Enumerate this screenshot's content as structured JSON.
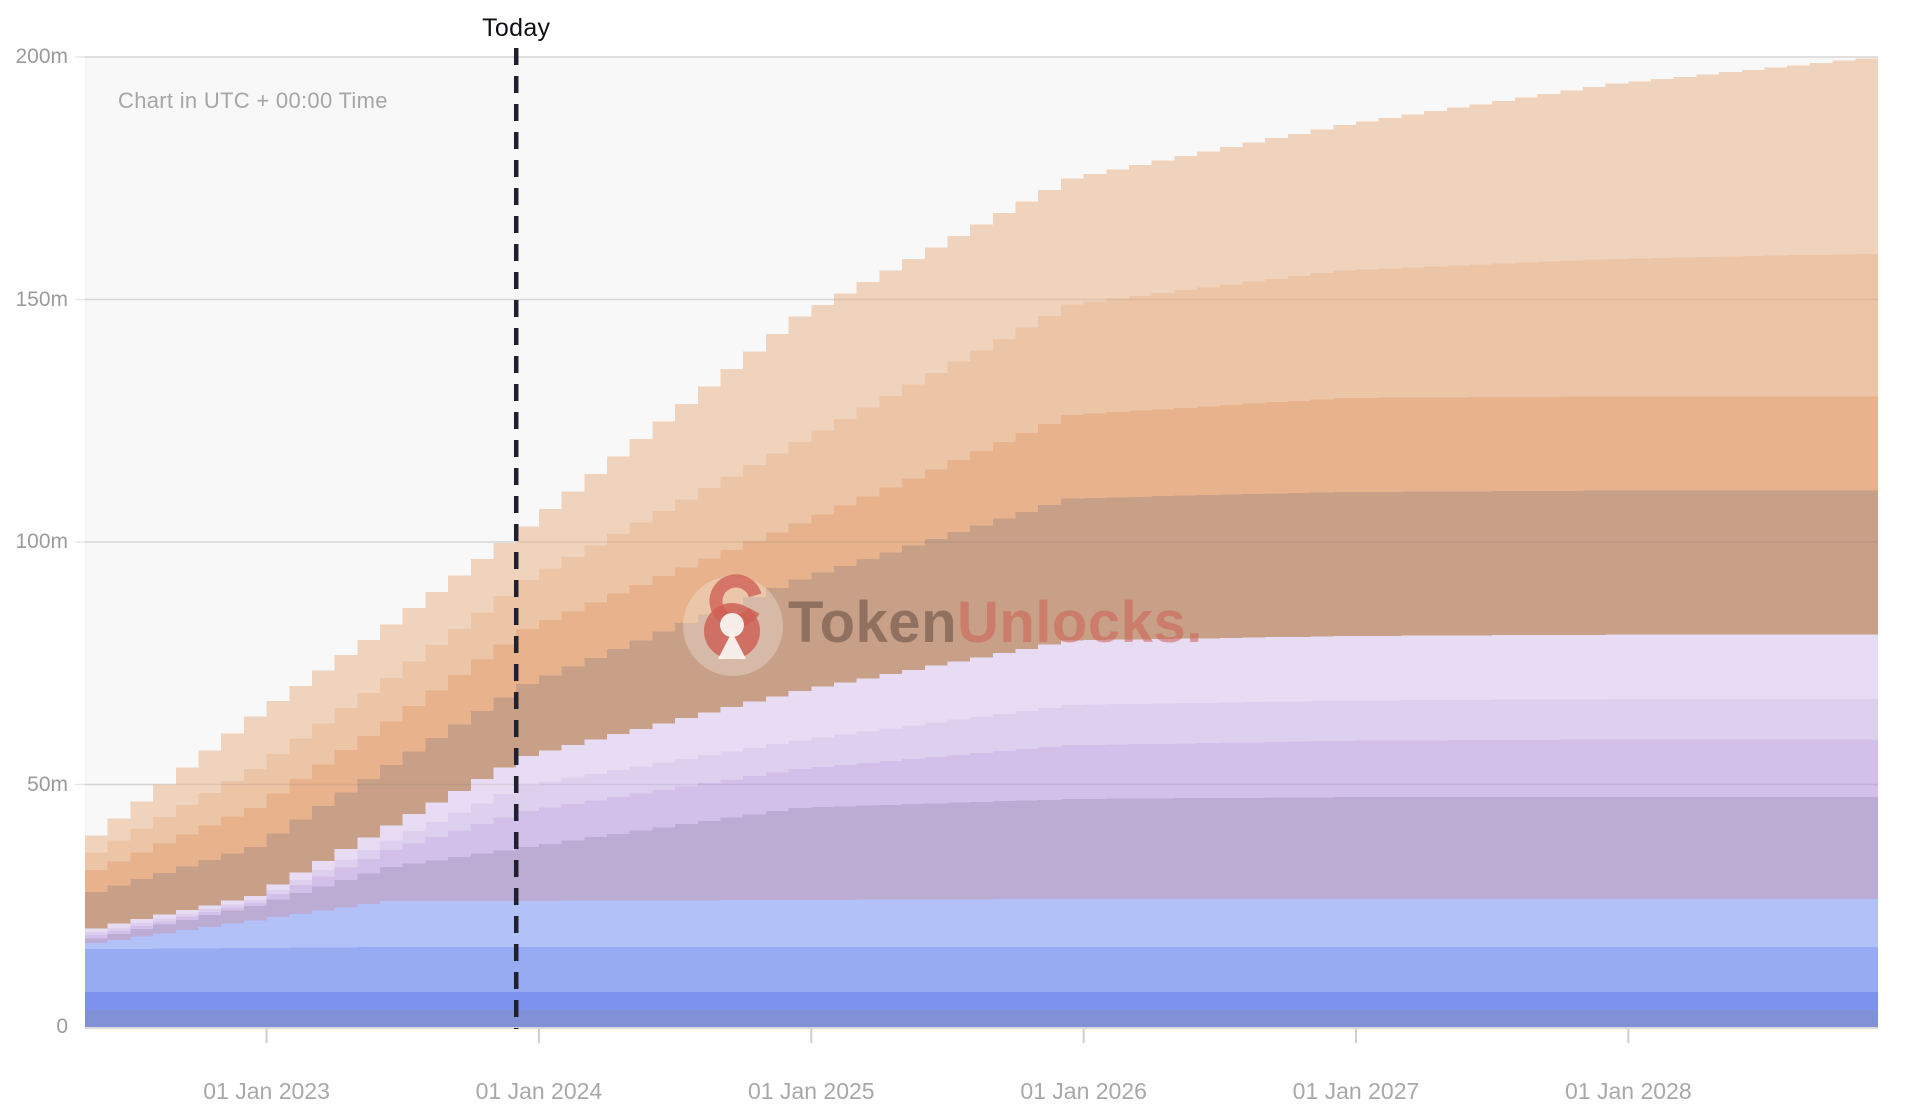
{
  "utc_note": "Chart in UTC + 00:00 Time",
  "today": {
    "label": "Today",
    "month_index": 19
  },
  "watermark": {
    "icon": "tokenunlocks-lock-icon",
    "brand_part_1": "Token",
    "brand_part_2": "Unlocks.",
    "icon_color": "#ce5e54"
  },
  "chart_data": {
    "type": "area",
    "stacking": "stacked",
    "step": "monthly",
    "title": "",
    "xlabel": "",
    "ylabel": "",
    "unit": "m = millions of tokens",
    "x_start": "May 2022",
    "x_end": "Nov 2028",
    "months_total": 79,
    "ylim": [
      0,
      200
    ],
    "grid": "horizontal",
    "legend": "none shown",
    "background_color": "#f8f8f8",
    "today_line_color": "#20202e",
    "keyframe_month_index": [
      0,
      8,
      14,
      20,
      32,
      44,
      56,
      68,
      79
    ],
    "keyframe_dates": [
      "May 2022",
      "Jan 2023",
      "Jul 2023",
      "Jan 2024",
      "Jan 2025",
      "Jan 2026",
      "Jan 2027",
      "Jan 2028",
      "Dec 2028"
    ],
    "series": [
      {
        "name": "band-slate-blue",
        "color": "#8191d6",
        "values": [
          3.5,
          3.5,
          3.5,
          3.5,
          3.5,
          3.5,
          3.5,
          3.5,
          3.5
        ]
      },
      {
        "name": "band-royal-blue",
        "color": "#7c92ee",
        "values": [
          3.7,
          3.7,
          3.7,
          3.7,
          3.7,
          3.7,
          3.7,
          3.7,
          3.7
        ]
      },
      {
        "name": "band-cornflower-blue",
        "color": "#97abf2",
        "values": [
          8.8,
          9.1,
          9.3,
          9.3,
          9.3,
          9.3,
          9.3,
          9.3,
          9.3
        ]
      },
      {
        "name": "band-light-blue",
        "color": "#b2c2f8",
        "values": [
          0.6,
          5.7,
          9.5,
          9.5,
          9.7,
          9.9,
          9.9,
          9.9,
          9.9
        ]
      },
      {
        "name": "band-mauve-purple",
        "color": "#bcabd2",
        "values": [
          0.7,
          3.0,
          7.0,
          11.1,
          19.0,
          20.6,
          21.0,
          21.0,
          21.0
        ]
      },
      {
        "name": "band-light-purple",
        "color": "#d2bfea",
        "values": [
          0.7,
          0.6,
          3.5,
          7.4,
          8.0,
          11.1,
          11.6,
          11.9,
          11.9
        ]
      },
      {
        "name": "band-lavender",
        "color": "#ddd0ef",
        "values": [
          0.6,
          0.6,
          2.0,
          5.4,
          5.9,
          8.3,
          8.3,
          8.3,
          8.3
        ]
      },
      {
        "name": "band-pale-lavender",
        "color": "#e7dcf3",
        "values": [
          0.8,
          0.8,
          3.0,
          6.0,
          10.2,
          13.3,
          13.3,
          13.3,
          13.3
        ]
      },
      {
        "name": "band-tan-brown",
        "color": "#c8a087",
        "values": [
          7.1,
          10.1,
          12.5,
          14.8,
          23.0,
          29.3,
          29.7,
          29.7,
          29.7
        ]
      },
      {
        "name": "band-salmon-orange",
        "color": "#e7b28c",
        "values": [
          4.0,
          8.1,
          9.0,
          11.4,
          11.5,
          17.2,
          19.4,
          19.4,
          19.4
        ]
      },
      {
        "name": "band-peach",
        "color": "#ecc4a6",
        "values": [
          3.0,
          8.0,
          9.0,
          10.1,
          16.8,
          22.8,
          26.3,
          28.4,
          29.4
        ]
      },
      {
        "name": "band-light-peach",
        "color": "#f0d3bc",
        "values": [
          2.5,
          10.8,
          11.0,
          11.0,
          25.9,
          26.0,
          30.0,
          36.1,
          40.3
        ]
      }
    ],
    "x_ticks": [
      {
        "month_index": 8,
        "label": "01 Jan 2023"
      },
      {
        "month_index": 20,
        "label": "01 Jan 2024"
      },
      {
        "month_index": 32,
        "label": "01 Jan 2025"
      },
      {
        "month_index": 44,
        "label": "01 Jan 2026"
      },
      {
        "month_index": 56,
        "label": "01 Jan 2027"
      },
      {
        "month_index": 68,
        "label": "01 Jan 2028"
      }
    ],
    "y_ticks": [
      {
        "value": 0,
        "label": "0"
      },
      {
        "value": 50,
        "label": "50m"
      },
      {
        "value": 100,
        "label": "100m"
      },
      {
        "value": 150,
        "label": "150m"
      },
      {
        "value": 200,
        "label": "200m"
      }
    ]
  }
}
